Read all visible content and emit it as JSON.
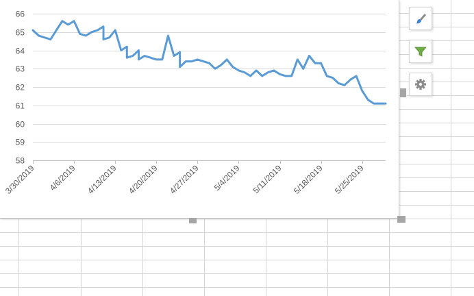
{
  "chart_data": {
    "type": "line",
    "title": "",
    "xlabel": "",
    "ylabel": "",
    "ylim": [
      58,
      66
    ],
    "y_ticks": [
      "58",
      "59",
      "60",
      "61",
      "62",
      "63",
      "64",
      "65",
      "66"
    ],
    "x_ticks": [
      "3/30/2019",
      "4/6/2019",
      "4/13/2019",
      "4/20/2019",
      "4/27/2019",
      "5/4/2019",
      "5/11/2019",
      "5/18/2019",
      "5/25/2019"
    ],
    "x_start": "3/30/2019",
    "x_end": "5/29/2019",
    "grid": true,
    "legend": "none",
    "line_color": "#5B9BD5",
    "series": [
      {
        "x": [
          "3/30/2019",
          "3/31/2019",
          "4/1/2019",
          "4/2/2019",
          "4/3/2019",
          "4/4/2019",
          "4/5/2019",
          "4/6/2019",
          "4/7/2019",
          "4/8/2019",
          "4/9/2019",
          "4/10/2019",
          "4/11/2019",
          "4/11/2019",
          "4/12/2019",
          "4/13/2019",
          "4/14/2019",
          "4/15/2019",
          "4/15/2019",
          "4/16/2019",
          "4/17/2019",
          "4/17/2019",
          "4/18/2019",
          "4/19/2019",
          "4/20/2019",
          "4/21/2019",
          "4/22/2019",
          "4/23/2019",
          "4/24/2019",
          "4/24/2019",
          "4/25/2019",
          "4/26/2019",
          "4/27/2019",
          "4/28/2019",
          "4/29/2019",
          "4/30/2019",
          "5/1/2019",
          "5/2/2019",
          "5/3/2019",
          "5/4/2019",
          "5/5/2019",
          "5/6/2019",
          "5/7/2019",
          "5/8/2019",
          "5/9/2019",
          "5/10/2019",
          "5/11/2019",
          "5/12/2019",
          "5/13/2019",
          "5/14/2019",
          "5/15/2019",
          "5/16/2019",
          "5/17/2019",
          "5/18/2019",
          "5/19/2019",
          "5/20/2019",
          "5/21/2019",
          "5/22/2019",
          "5/23/2019",
          "5/24/2019",
          "5/25/2019",
          "5/26/2019",
          "5/27/2019",
          "5/28/2019",
          "5/29/2019"
        ],
        "values": [
          65.1,
          64.8,
          64.7,
          64.6,
          65.1,
          65.6,
          65.4,
          65.6,
          64.9,
          64.8,
          65.0,
          65.1,
          65.3,
          64.6,
          64.7,
          65.1,
          64.0,
          64.2,
          63.6,
          63.7,
          64.0,
          63.5,
          63.7,
          63.6,
          63.5,
          63.5,
          64.8,
          63.7,
          63.9,
          63.1,
          63.4,
          63.4,
          63.5,
          63.4,
          63.3,
          63.0,
          63.2,
          63.5,
          63.1,
          62.9,
          62.8,
          62.6,
          62.9,
          62.6,
          62.8,
          62.9,
          62.7,
          62.6,
          62.6,
          63.5,
          63.0,
          63.7,
          63.3,
          63.3,
          62.6,
          62.5,
          62.2,
          62.1,
          62.4,
          62.6,
          61.8,
          61.3,
          61.1,
          61.1,
          61.1
        ]
      }
    ]
  },
  "side_buttons": {
    "styles_icon": "paintbrush-icon",
    "filter_icon": "funnel-icon",
    "settings_icon": "gear-icon"
  }
}
